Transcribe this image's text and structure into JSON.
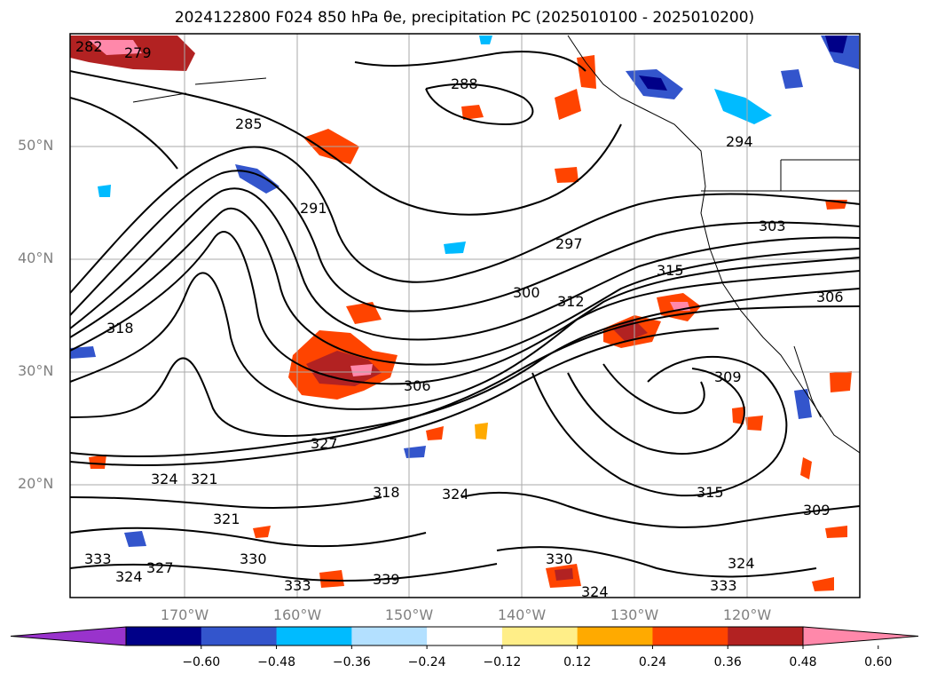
{
  "figure": {
    "title": "2024122800 F024 850 hPa θe, precipitation PC (2025010100 - 2025010200)",
    "lat_labels": [
      "50°N",
      "40°N",
      "30°N",
      "20°N"
    ],
    "lon_labels": [
      "170°W",
      "160°W",
      "150°W",
      "140°W",
      "130°W",
      "120°W"
    ]
  },
  "colorbar": {
    "ticks": [
      "−0.60",
      "−0.48",
      "−0.36",
      "−0.24",
      "−0.12",
      "0.12",
      "0.24",
      "0.36",
      "0.48",
      "0.60"
    ],
    "colors": [
      "#9933cc",
      "#000088",
      "#3355cc",
      "#00bbff",
      "#b3e0ff",
      "#ffffff",
      "#ffee88",
      "#ffaa00",
      "#ff4400",
      "#b22222",
      "#ff88aa"
    ]
  },
  "contours": {
    "labels": [
      "279",
      "282",
      "285",
      "288",
      "291",
      "294",
      "297",
      "300",
      "303",
      "306",
      "309",
      "312",
      "315",
      "318",
      "321",
      "324",
      "327",
      "330",
      "333",
      "339"
    ]
  },
  "map": {
    "ocean_color": "#ffffff",
    "contour_color": "#000000",
    "grid_color": "#aaaaaa"
  }
}
